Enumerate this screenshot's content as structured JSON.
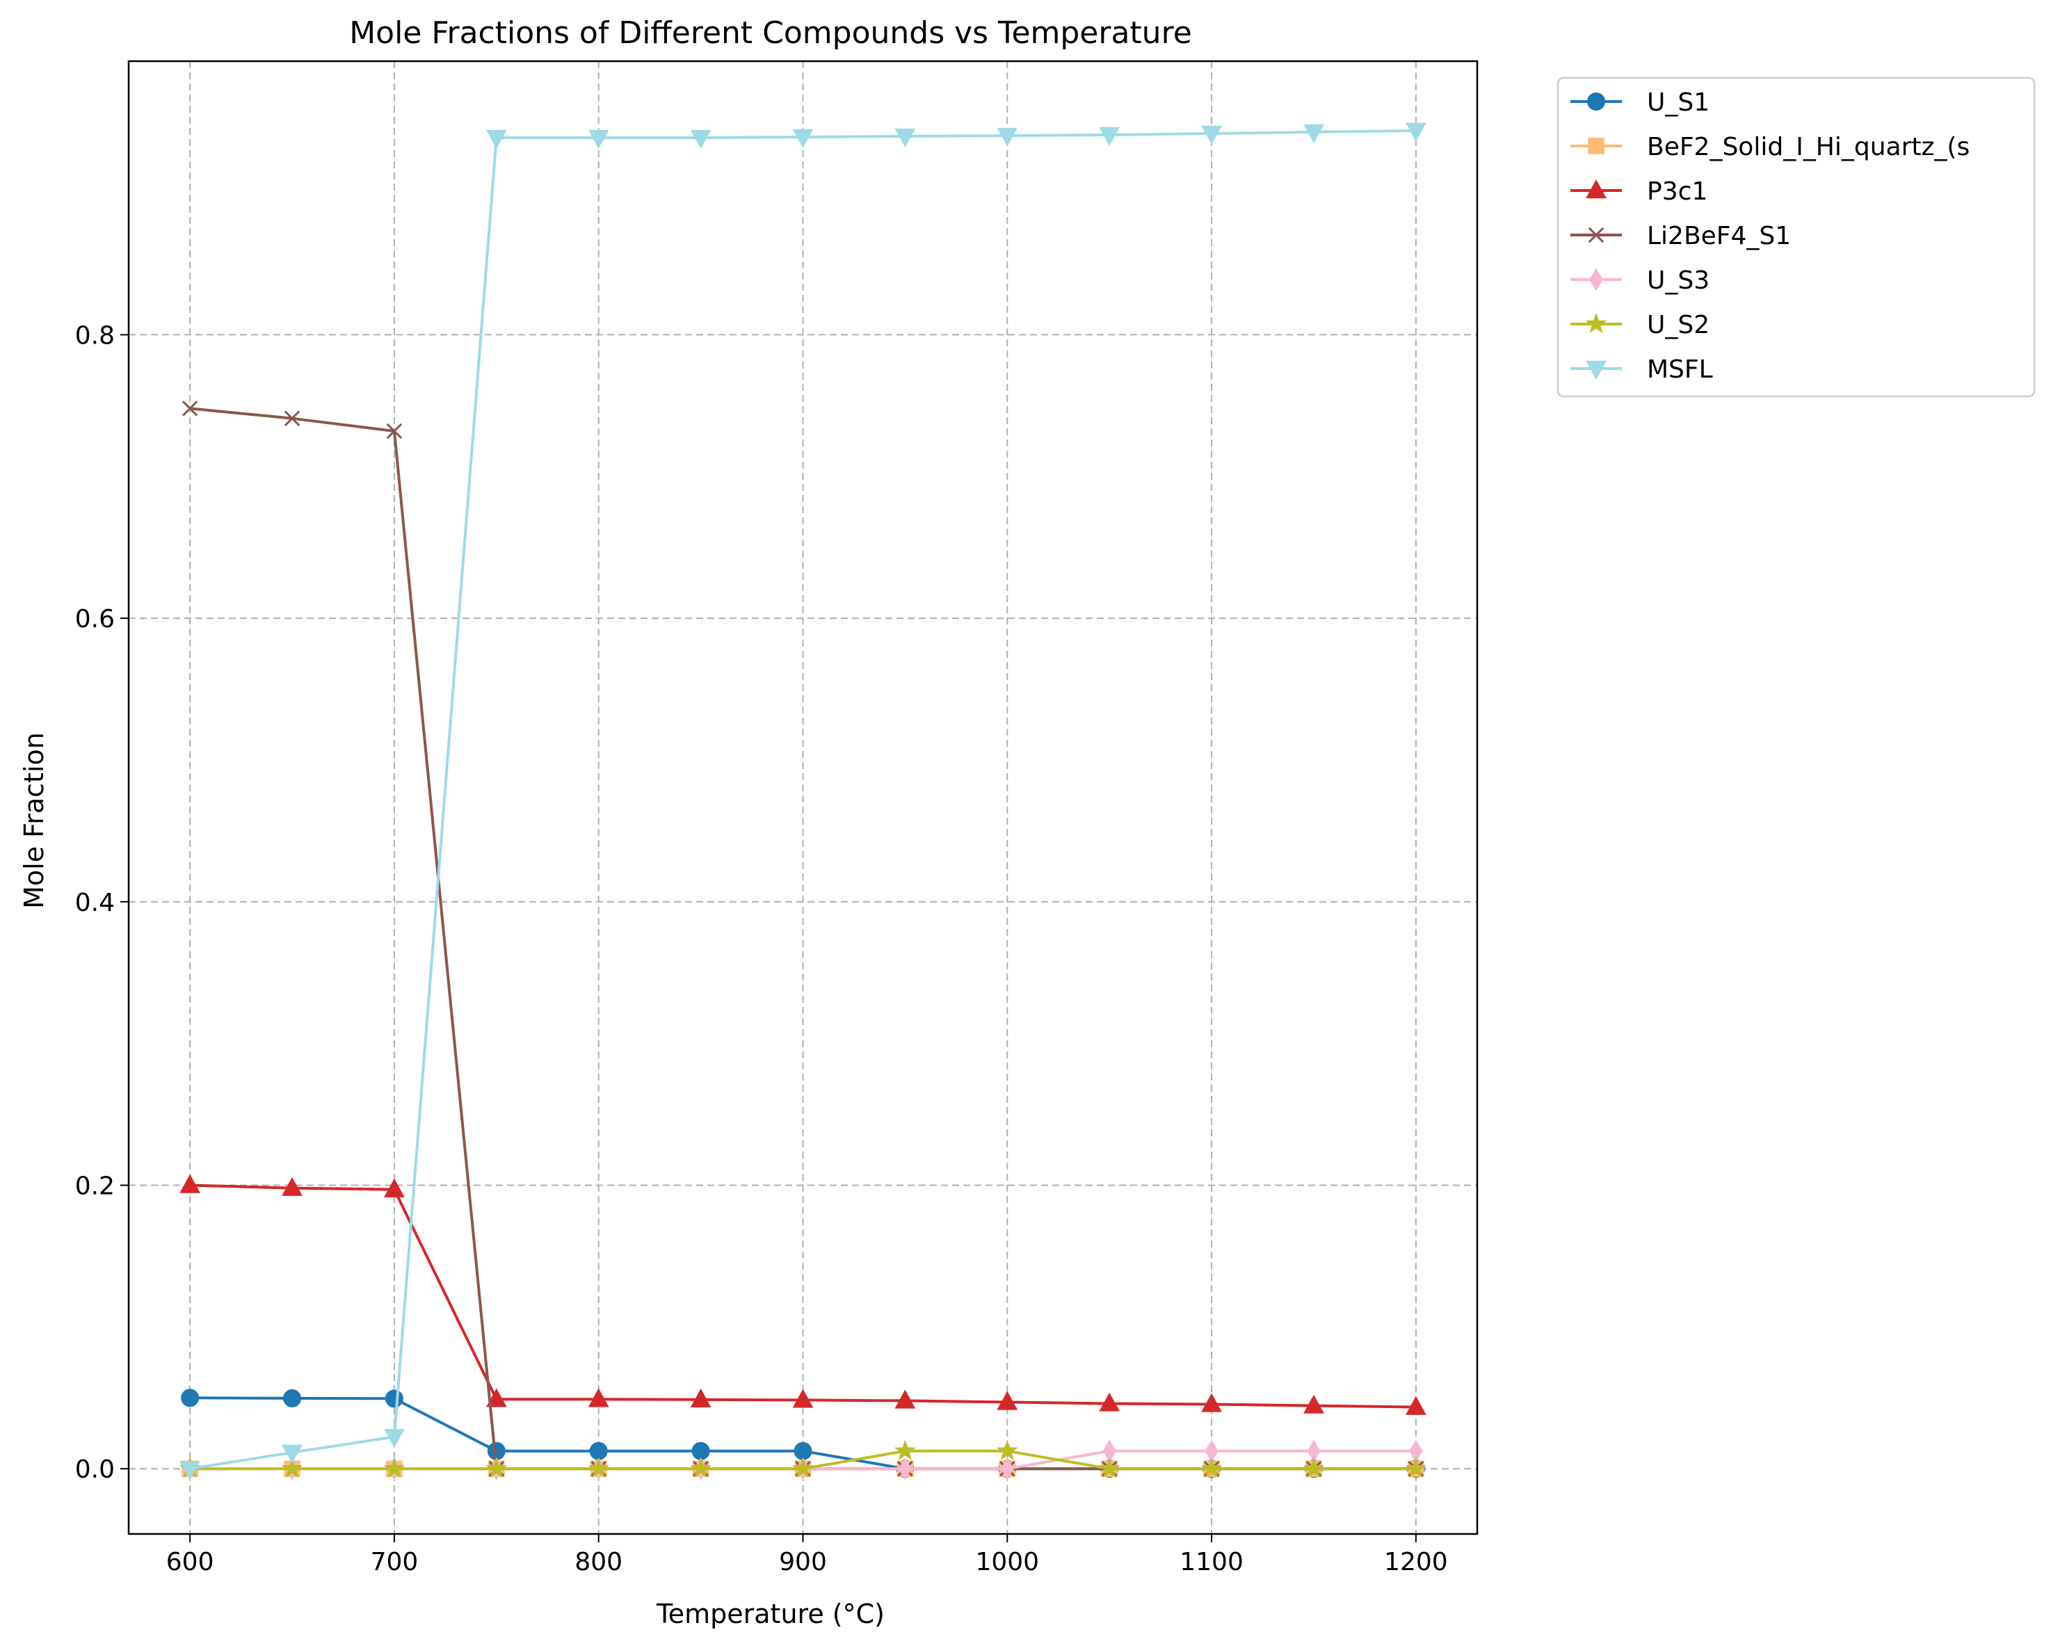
{
  "chart_data": {
    "type": "line",
    "title": "Mole Fractions of Different Compounds vs Temperature",
    "xlabel": "Temperature (°C)",
    "ylabel": "Mole Fraction",
    "xlim": [
      570,
      1230
    ],
    "ylim": [
      -0.046,
      0.993
    ],
    "xticks": [
      600,
      700,
      800,
      900,
      1000,
      1100,
      1200
    ],
    "yticks": [
      0.0,
      0.2,
      0.4,
      0.6,
      0.8
    ],
    "grid": true,
    "legend_position": "outside-top-right",
    "x": [
      600,
      650,
      700,
      750,
      800,
      850,
      900,
      950,
      1000,
      1050,
      1100,
      1150,
      1200
    ],
    "series": [
      {
        "name": "U_S1",
        "color": "#1f77b4",
        "marker": "circle",
        "values": [
          0.05,
          0.0497,
          0.0495,
          0.0125,
          0.0125,
          0.0125,
          0.0125,
          0.0,
          0.0,
          0.0,
          0.0,
          0.0,
          0.0
        ]
      },
      {
        "name": "BeF2_Solid_I_Hi_quartz_(s",
        "color": "#ffbb78",
        "marker": "square",
        "values": [
          0.0,
          0.0,
          0.0,
          0.0,
          0.0,
          0.0,
          0.0,
          0.0,
          0.0,
          0.0,
          0.0,
          0.0,
          0.0
        ]
      },
      {
        "name": "P3c1",
        "color": "#d62728",
        "marker": "triangle-up",
        "values": [
          0.2,
          0.198,
          0.197,
          0.049,
          0.049,
          0.0488,
          0.0485,
          0.048,
          0.047,
          0.046,
          0.0455,
          0.0445,
          0.0435
        ]
      },
      {
        "name": "Li2BeF4_S1",
        "color": "#8c564b",
        "marker": "x",
        "values": [
          0.748,
          0.741,
          0.732,
          0.0,
          0.0,
          0.0,
          0.0,
          0.0,
          0.0,
          0.0,
          0.0,
          0.0,
          0.0
        ]
      },
      {
        "name": "U_S3",
        "color": "#f7b6d2",
        "marker": "thin-diamond",
        "values": [
          0.0,
          0.0,
          0.0,
          0.0,
          0.0,
          0.0,
          0.0,
          0.0,
          0.0,
          0.0125,
          0.0125,
          0.0125,
          0.0125
        ]
      },
      {
        "name": "U_S2",
        "color": "#bcbd22",
        "marker": "star",
        "values": [
          0.0,
          0.0,
          0.0,
          0.0,
          0.0,
          0.0,
          0.0,
          0.0125,
          0.0125,
          0.0,
          0.0,
          0.0,
          0.0
        ]
      },
      {
        "name": "MSFL",
        "color": "#9edae5",
        "marker": "triangle-down",
        "values": [
          0.0,
          0.0115,
          0.0225,
          0.939,
          0.939,
          0.939,
          0.9395,
          0.94,
          0.9405,
          0.941,
          0.942,
          0.943,
          0.944
        ]
      }
    ]
  }
}
